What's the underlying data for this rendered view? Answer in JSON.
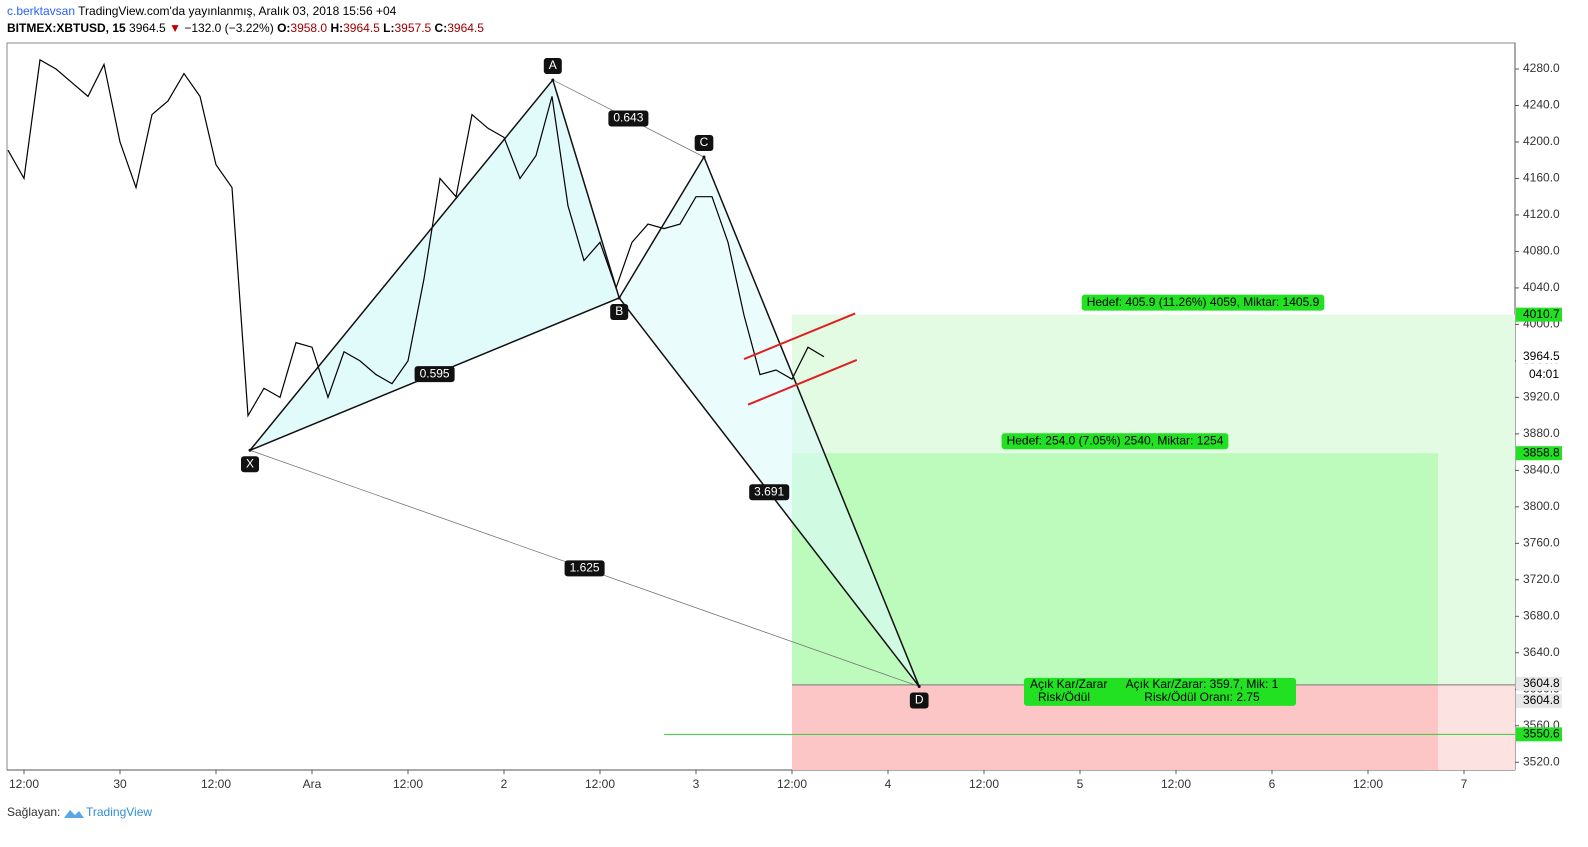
{
  "header": {
    "author": "c.berktavsan",
    "published": "TradingView.com'da yayınlanmış, Aralık 03, 2018 15:56 +04",
    "symbol": "BITMEX:XBTUSD, 15",
    "last": "3964.5",
    "arrow": "▼",
    "change": "−132.0 (−3.22%)",
    "ohlc": [
      {
        "key": "O:",
        "value": "3958.0"
      },
      {
        "key": "H:",
        "value": "3964.5"
      },
      {
        "key": "L:",
        "value": "3957.5"
      },
      {
        "key": "C:",
        "value": "3964.5"
      }
    ]
  },
  "footer": {
    "prefix": "Sağlayan:",
    "brand": "TradingView"
  },
  "chart_data": {
    "type": "line",
    "color": "#000000",
    "grid": false,
    "x": [
      -2,
      0,
      2,
      4,
      6,
      8,
      10,
      12,
      14,
      16,
      18,
      20,
      22,
      24,
      26,
      28,
      30,
      32,
      34,
      36,
      38,
      40,
      42,
      44,
      46,
      48,
      50,
      52,
      54,
      56,
      58,
      60,
      62,
      64,
      66,
      68,
      70,
      72,
      74,
      76,
      78,
      80,
      82,
      84,
      86,
      88,
      90,
      92,
      94,
      96,
      98,
      100
    ],
    "values": [
      4191,
      4160,
      4290,
      4280,
      4265,
      4250,
      4285,
      4200,
      4150,
      4230,
      4245,
      4275,
      4250,
      4175,
      4150,
      3900,
      3930,
      3920,
      3980,
      3975,
      3920,
      3970,
      3960,
      3945,
      3935,
      3960,
      4050,
      4160,
      4140,
      4230,
      4215,
      4205,
      4160,
      4185,
      4250,
      4130,
      4070,
      4090,
      4040,
      4090,
      4110,
      4105,
      4110,
      4140,
      4140,
      4090,
      4010,
      3945,
      3950,
      3940,
      3975,
      3964.5
    ],
    "xlim": [
      -2.125,
      186.375
    ],
    "ylim": [
      3511.5,
      4308.5
    ],
    "xticks": [
      {
        "value": 0,
        "label": "12:00"
      },
      {
        "value": 12,
        "label": "30"
      },
      {
        "value": 24,
        "label": "12:00"
      },
      {
        "value": 36,
        "label": "Ara"
      },
      {
        "value": 48,
        "label": "12:00"
      },
      {
        "value": 60,
        "label": "2"
      },
      {
        "value": 72,
        "label": "12:00"
      },
      {
        "value": 84,
        "label": "3"
      },
      {
        "value": 96,
        "label": "12:00"
      },
      {
        "value": 108,
        "label": "4"
      },
      {
        "value": 120,
        "label": "12:00"
      },
      {
        "value": 132,
        "label": "5"
      },
      {
        "value": 144,
        "label": "12:00"
      },
      {
        "value": 156,
        "label": "6"
      },
      {
        "value": 168,
        "label": "12:00"
      },
      {
        "value": 180,
        "label": "7"
      }
    ],
    "yticks": [
      {
        "value": 3520,
        "label": "3520.0"
      },
      {
        "value": 3560,
        "label": "3560.0"
      },
      {
        "value": 3600,
        "label": "3600.0"
      },
      {
        "value": 3640,
        "label": "3640.0"
      },
      {
        "value": 3680,
        "label": "3680.0"
      },
      {
        "value": 3720,
        "label": "3720.0"
      },
      {
        "value": 3760,
        "label": "3760.0"
      },
      {
        "value": 3800,
        "label": "3800.0"
      },
      {
        "value": 3840,
        "label": "3840.0"
      },
      {
        "value": 3880,
        "label": "3880.0"
      },
      {
        "value": 3920,
        "label": "3920.0"
      },
      {
        "value": 3960,
        "label": "3960.0"
      },
      {
        "value": 4000,
        "label": "4000.0"
      },
      {
        "value": 4040,
        "label": "4040.0"
      },
      {
        "value": 4080,
        "label": "4080.0"
      },
      {
        "value": 4120,
        "label": "4120.0"
      },
      {
        "value": 4160,
        "label": "4160.0"
      },
      {
        "value": 4200,
        "label": "4200.0"
      },
      {
        "value": 4240,
        "label": "4240.0"
      },
      {
        "value": 4280,
        "label": "4280.0"
      }
    ],
    "countdown": "04:01",
    "pattern": {
      "fill": "#dcfafa",
      "points": [
        {
          "label": "X",
          "x": 28.25,
          "y": 3862
        },
        {
          "label": "A",
          "x": 66.1,
          "y": 4268
        },
        {
          "label": "B",
          "x": 74.4,
          "y": 4029
        },
        {
          "label": "C",
          "x": 85,
          "y": 4183.5
        },
        {
          "label": "D",
          "x": 111.9,
          "y": 3603
        }
      ],
      "ratios": [
        "0.595",
        "3.691",
        "0.643",
        "1.625"
      ]
    },
    "channel": {
      "color": "#e02020",
      "lines": [
        {
          "x": [
            90,
            103.9
          ],
          "y": [
            3962,
            4012
          ]
        },
        {
          "x": [
            90.5,
            104.1
          ],
          "y": [
            3912,
            3961
          ]
        }
      ]
    },
    "position": {
      "x_start": 96,
      "x_end_inner": 176.75,
      "entry": 3604.8,
      "target_far": 4010.7,
      "target_near": 3858.8,
      "stop": 3550.6,
      "stop_line_x_start": 80,
      "far_label": "Hedef: 405.9 (11.26%) 4059, Miktar: 1405.9",
      "near_label": "Hedef: 254.0 (7.05%) 2540, Miktar: 1254",
      "pnl_label": "Açık Kar/Zarar: 359.7, Mik: 1",
      "ratio_label": "Risk/Ödül Oranı: 2.75",
      "pnl_label_behind": "Açık Kar/Zarar",
      "ratio_label_behind": "Risk/Ödül"
    }
  }
}
